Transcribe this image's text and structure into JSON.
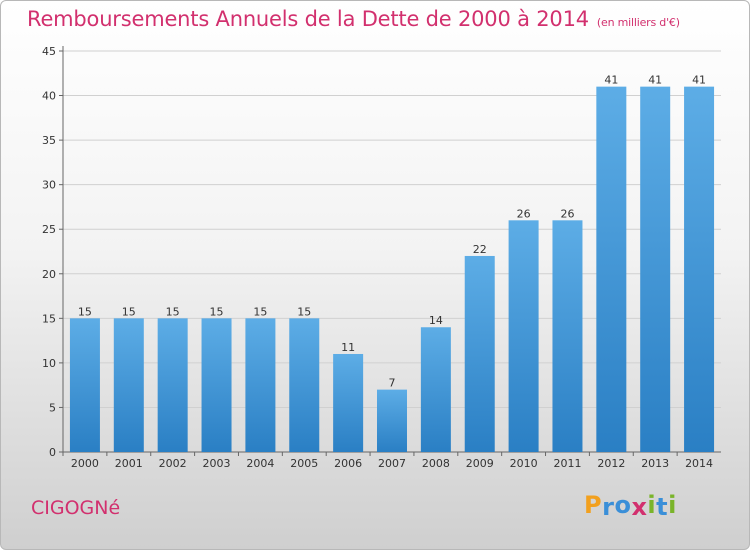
{
  "chart_data": {
    "type": "bar",
    "title": "Remboursements Annuels de la Dette de 2000 à 2014",
    "subtitle": "(en milliers d'€)",
    "categories": [
      "2000",
      "2001",
      "2002",
      "2003",
      "2004",
      "2005",
      "2006",
      "2007",
      "2008",
      "2009",
      "2010",
      "2011",
      "2012",
      "2013",
      "2014"
    ],
    "values": [
      15,
      15,
      15,
      15,
      15,
      15,
      11,
      7,
      14,
      22,
      26,
      26,
      41,
      41,
      41
    ],
    "ylim": [
      0,
      45
    ],
    "yticks": [
      0,
      5,
      10,
      15,
      20,
      25,
      30,
      35,
      40,
      45
    ],
    "grid": true,
    "colors": {
      "bar_top": "#5dade6",
      "bar_bottom": "#2a7fc4",
      "title": "#d2306e"
    }
  },
  "footer": {
    "commune": "CIGOGNé",
    "logo": {
      "letters": [
        "P",
        "r",
        "o",
        "x",
        "i",
        "t",
        "i"
      ],
      "colors": [
        "#f2a01e",
        "#3a8fd8",
        "#3a8fd8",
        "#d2306e",
        "#7ab42a",
        "#3a8fd8",
        "#7ab42a"
      ]
    }
  }
}
